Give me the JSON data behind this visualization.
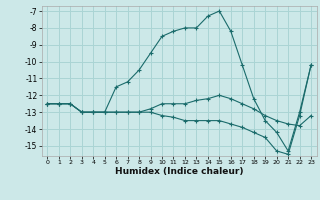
{
  "xlabel": "Humidex (Indice chaleur)",
  "bg_color": "#cce8e8",
  "grid_color": "#aad4d4",
  "line_color": "#1a6b6b",
  "xlim": [
    -0.5,
    23.5
  ],
  "ylim": [
    -15.6,
    -6.7
  ],
  "yticks": [
    -15,
    -14,
    -13,
    -12,
    -11,
    -10,
    -9,
    -8,
    -7
  ],
  "xticks": [
    0,
    1,
    2,
    3,
    4,
    5,
    6,
    7,
    8,
    9,
    10,
    11,
    12,
    13,
    14,
    15,
    16,
    17,
    18,
    19,
    20,
    21,
    22,
    23
  ],
  "series1_x": [
    0,
    1,
    2,
    3,
    4,
    5,
    6,
    7,
    8,
    9,
    10,
    11,
    12,
    13,
    14,
    15,
    16,
    17,
    18,
    19,
    20,
    21,
    22,
    23
  ],
  "series1_y": [
    -12.5,
    -12.5,
    -12.5,
    -13.0,
    -13.0,
    -13.0,
    -11.5,
    -11.2,
    -10.5,
    -9.5,
    -8.5,
    -8.2,
    -8.0,
    -8.0,
    -7.3,
    -7.0,
    -8.2,
    -10.2,
    -12.2,
    -13.5,
    -14.2,
    -15.3,
    -13.0,
    -10.2
  ],
  "series2_x": [
    0,
    1,
    2,
    3,
    4,
    5,
    6,
    7,
    8,
    9,
    10,
    11,
    12,
    13,
    14,
    15,
    16,
    17,
    18,
    19,
    20,
    21,
    22,
    23
  ],
  "series2_y": [
    -12.5,
    -12.5,
    -12.5,
    -13.0,
    -13.0,
    -13.0,
    -13.0,
    -13.0,
    -13.0,
    -12.8,
    -12.5,
    -12.5,
    -12.5,
    -12.3,
    -12.2,
    -12.0,
    -12.2,
    -12.5,
    -12.8,
    -13.2,
    -13.5,
    -13.7,
    -13.8,
    -13.2
  ],
  "series3_x": [
    0,
    1,
    2,
    3,
    4,
    5,
    6,
    7,
    8,
    9,
    10,
    11,
    12,
    13,
    14,
    15,
    16,
    17,
    18,
    19,
    20,
    21,
    22,
    23
  ],
  "series3_y": [
    -12.5,
    -12.5,
    -12.5,
    -13.0,
    -13.0,
    -13.0,
    -13.0,
    -13.0,
    -13.0,
    -13.0,
    -13.2,
    -13.3,
    -13.5,
    -13.5,
    -13.5,
    -13.5,
    -13.7,
    -13.9,
    -14.2,
    -14.5,
    -15.3,
    -15.5,
    -13.2,
    -10.2
  ]
}
